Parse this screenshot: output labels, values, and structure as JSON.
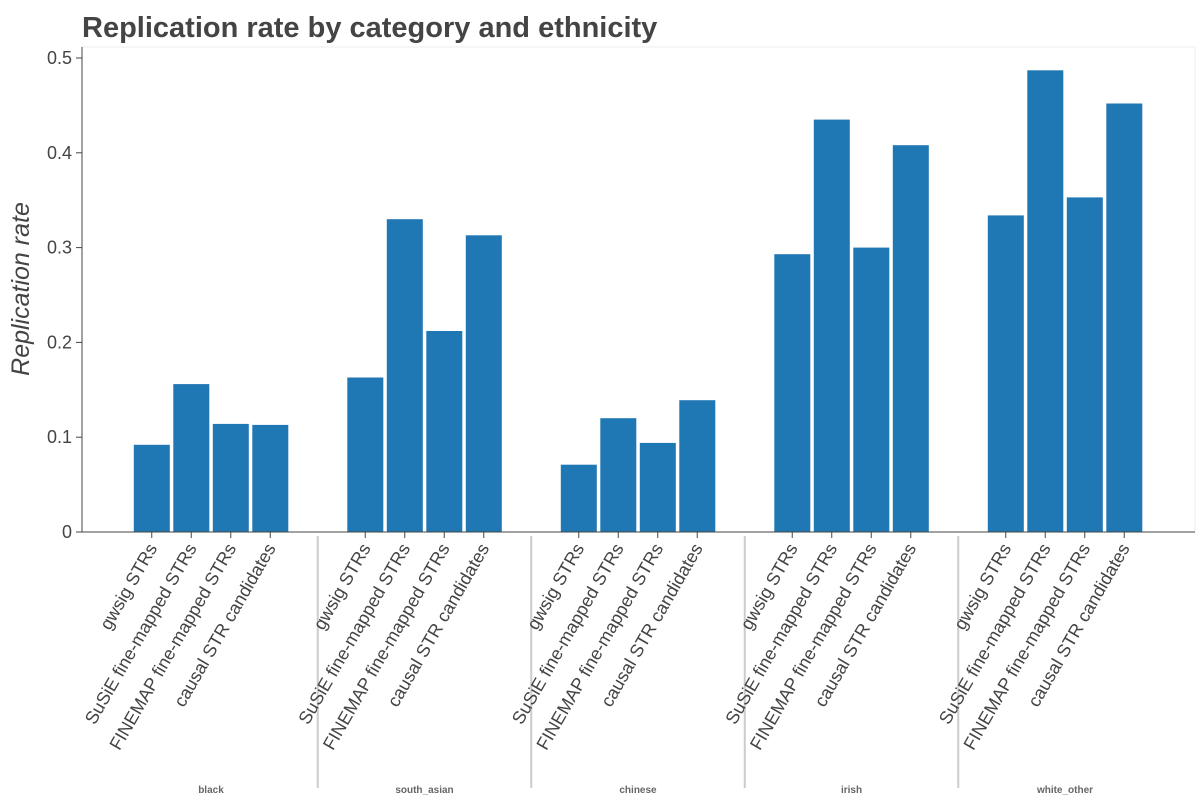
{
  "chart_data": {
    "type": "bar",
    "title": "Replication rate by category and ethnicity",
    "ylabel": "Replication rate",
    "xlabel": "",
    "ylim": [
      0,
      0.51
    ],
    "yticks": [
      0,
      0.1,
      0.2,
      0.3,
      0.4,
      0.5
    ],
    "ytick_labels": [
      "0",
      "0.1",
      "0.2",
      "0.3",
      "0.4",
      "0.5"
    ],
    "categories": [
      "gwsig STRs",
      "SuSiE fine-mapped STRs",
      "FINEMAP fine-mapped STRs",
      "causal STR candidates"
    ],
    "bar_color": "#1f77b4",
    "groups": [
      {
        "name": "black",
        "values": [
          0.092,
          0.156,
          0.114,
          0.113
        ]
      },
      {
        "name": "south_asian",
        "values": [
          0.163,
          0.33,
          0.212,
          0.313
        ]
      },
      {
        "name": "chinese",
        "values": [
          0.071,
          0.12,
          0.094,
          0.139
        ]
      },
      {
        "name": "irish",
        "values": [
          0.293,
          0.435,
          0.3,
          0.408
        ]
      },
      {
        "name": "white_other",
        "values": [
          0.334,
          0.487,
          0.353,
          0.452
        ]
      }
    ],
    "grid": false,
    "legend": "none"
  }
}
